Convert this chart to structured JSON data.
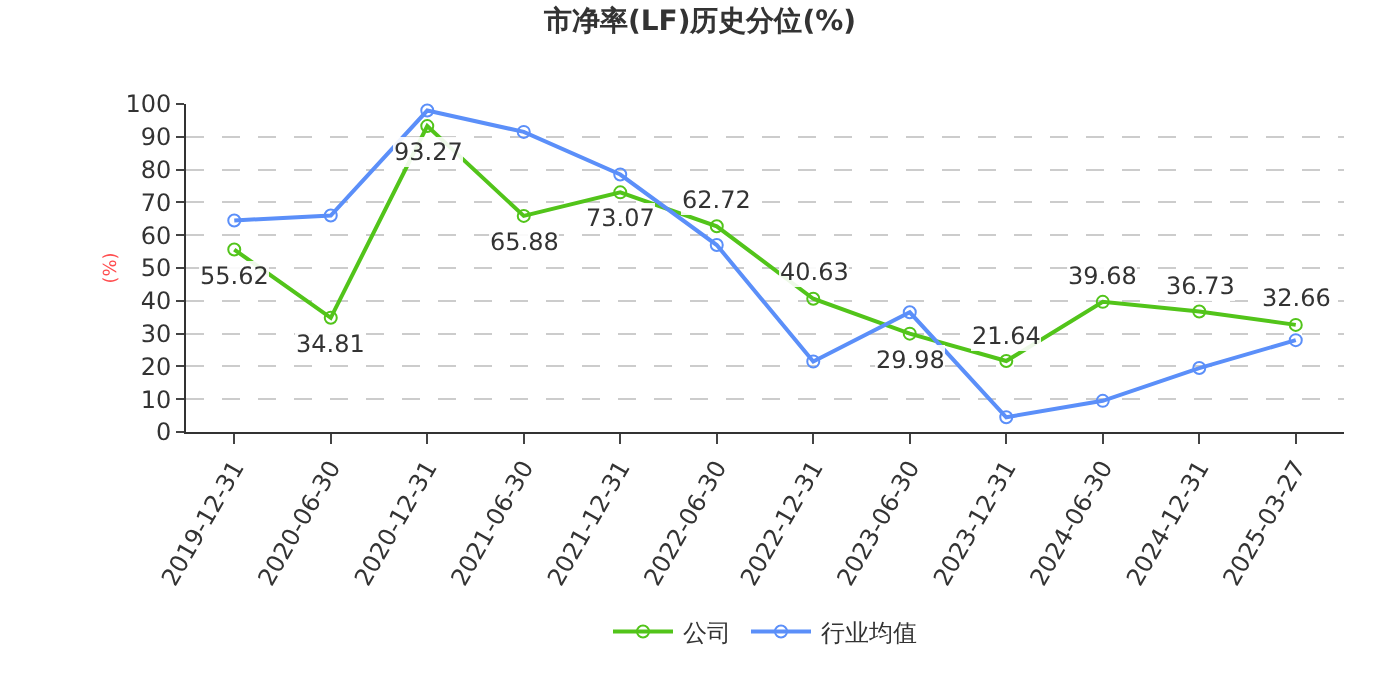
{
  "chart_data": {
    "type": "line",
    "title": "市净率(LF)历史分位(%)",
    "ylabel": "(%)",
    "categories": [
      "2019-12-31",
      "2020-06-30",
      "2020-12-31",
      "2021-06-30",
      "2021-12-31",
      "2022-06-30",
      "2022-12-31",
      "2023-06-30",
      "2023-12-31",
      "2024-06-30",
      "2024-12-31",
      "2025-03-27"
    ],
    "series": [
      {
        "name": "公司",
        "color": "#52c41a",
        "values": [
          55.62,
          34.81,
          93.27,
          65.88,
          73.07,
          62.72,
          40.63,
          29.98,
          21.64,
          39.68,
          36.73,
          32.66
        ],
        "value_labels": [
          "55.62",
          "34.81",
          "93.27",
          "65.88",
          "73.07",
          "62.72",
          "40.63",
          "29.98",
          "21.64",
          "39.68",
          "36.73",
          "32.66"
        ]
      },
      {
        "name": "行业均值",
        "color": "#5b8ff9",
        "values": [
          64.5,
          66,
          98,
          91.5,
          78.5,
          57,
          21.5,
          36.5,
          4.5,
          9.5,
          19.5,
          28
        ]
      }
    ],
    "ylim": [
      0,
      100
    ],
    "yticks": [
      0,
      10,
      20,
      30,
      40,
      50,
      60,
      70,
      80,
      90,
      100
    ],
    "grid": "y",
    "legend": "bottom",
    "marker": "circle",
    "line_style": "solid"
  }
}
